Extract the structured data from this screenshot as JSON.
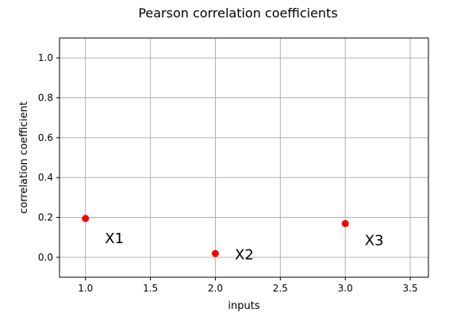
{
  "chart_data": {
    "type": "scatter",
    "title": "Pearson correlation coefficients",
    "xlabel": "inputs",
    "ylabel": "correlation coefficient",
    "xlim": [
      0.8,
      3.64
    ],
    "ylim": [
      -0.1,
      1.1
    ],
    "x_ticks": [
      1.0,
      1.5,
      2.0,
      2.5,
      3.0,
      3.5
    ],
    "x_tick_labels": [
      "1.0",
      "1.5",
      "2.0",
      "2.5",
      "3.0",
      "3.5"
    ],
    "y_ticks": [
      0.0,
      0.2,
      0.4,
      0.6,
      0.8,
      1.0
    ],
    "y_tick_labels": [
      "0.0",
      "0.2",
      "0.4",
      "0.6",
      "0.8",
      "1.0"
    ],
    "grid": true,
    "series": [
      {
        "color": "#ff0000",
        "points": [
          {
            "x": 1.0,
            "y": 0.195
          },
          {
            "x": 2.0,
            "y": 0.019
          },
          {
            "x": 3.0,
            "y": 0.169
          }
        ]
      }
    ],
    "annotations": [
      {
        "text": "X1",
        "x": 1.15,
        "y": 0.07
      },
      {
        "text": "X2",
        "x": 2.15,
        "y": -0.01
      },
      {
        "text": "X3",
        "x": 3.15,
        "y": 0.06
      }
    ]
  }
}
